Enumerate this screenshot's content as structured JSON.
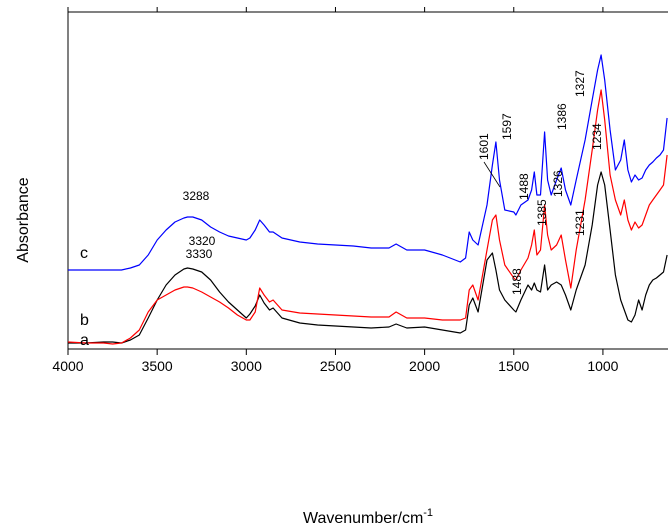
{
  "chart_data": {
    "type": "line",
    "x_label": {
      "text": "Wavenumber/cm",
      "superscript": "-1"
    },
    "y_label": "Absorbance",
    "x": [
      4000,
      3900,
      3800,
      3750,
      3700,
      3650,
      3600,
      3550,
      3500,
      3450,
      3400,
      3350,
      3330,
      3300,
      3250,
      3200,
      3150,
      3100,
      3050,
      3000,
      2980,
      2950,
      2925,
      2900,
      2870,
      2850,
      2800,
      2700,
      2600,
      2500,
      2400,
      2300,
      2200,
      2160,
      2100,
      2000,
      1900,
      1800,
      1770,
      1750,
      1730,
      1700,
      1650,
      1620,
      1600,
      1580,
      1550,
      1500,
      1488,
      1460,
      1420,
      1400,
      1385,
      1370,
      1350,
      1327,
      1310,
      1290,
      1260,
      1234,
      1210,
      1180,
      1150,
      1100,
      1060,
      1030,
      1010,
      990,
      960,
      930,
      900,
      880,
      860,
      840,
      820,
      800,
      780,
      760,
      740,
      720,
      700,
      680,
      660,
      640
    ],
    "series": [
      {
        "name": "a",
        "color": "#000000",
        "values": [
          6,
          6,
          7,
          7,
          6,
          9,
          14,
          31,
          49,
          64,
          74,
          80,
          81,
          80,
          77,
          69,
          57,
          47,
          39,
          31,
          35,
          43,
          54,
          46,
          39,
          41,
          31,
          26,
          24,
          23,
          22,
          21,
          22,
          25,
          21,
          22,
          19,
          16,
          19,
          44,
          51,
          37,
          89,
          96,
          79,
          59,
          49,
          39,
          37,
          49,
          64,
          59,
          66,
          59,
          57,
          84,
          59,
          64,
          67,
          64,
          54,
          39,
          59,
          84,
          124,
          164,
          177,
          164,
          119,
          74,
          49,
          39,
          29,
          27,
          34,
          49,
          39,
          54,
          64,
          69,
          71,
          74,
          77,
          94
        ]
      },
      {
        "name": "b",
        "color": "#ff0000",
        "values": [
          7,
          6,
          6,
          5,
          6,
          11,
          19,
          37,
          49,
          54,
          59,
          62,
          62,
          61,
          57,
          52,
          47,
          41,
          34,
          29,
          29,
          37,
          61,
          54,
          47,
          49,
          39,
          36,
          35,
          34,
          33,
          32,
          32,
          37,
          31,
          31,
          29,
          29,
          31,
          59,
          64,
          49,
          99,
          129,
          134,
          109,
          84,
          71,
          69,
          79,
          91,
          104,
          119,
          94,
          99,
          144,
          114,
          99,
          104,
          114,
          89,
          61,
          99,
          149,
          199,
          239,
          259,
          229,
          174,
          149,
          134,
          149,
          129,
          119,
          127,
          121,
          124,
          134,
          144,
          149,
          154,
          159,
          164,
          194
        ]
      },
      {
        "name": "c",
        "color": "#0000ff",
        "values": [
          79,
          79,
          79,
          79,
          79,
          81,
          84,
          94,
          109,
          119,
          127,
          131,
          132,
          132,
          129,
          122,
          117,
          113,
          111,
          109,
          111,
          119,
          129,
          124,
          117,
          117,
          111,
          107,
          105,
          104,
          103,
          101,
          101,
          105,
          99,
          99,
          94,
          87,
          91,
          117,
          109,
          104,
          144,
          184,
          207,
          169,
          139,
          137,
          134,
          144,
          149,
          159,
          177,
          154,
          154,
          217,
          169,
          154,
          169,
          181,
          159,
          144,
          169,
          209,
          249,
          279,
          294,
          269,
          219,
          179,
          189,
          209,
          179,
          167,
          174,
          169,
          171,
          179,
          184,
          187,
          191,
          194,
          199,
          231
        ]
      }
    ],
    "xlim": [
      4000,
      635
    ],
    "xticks": [
      4000,
      3500,
      3000,
      2500,
      2000,
      1500,
      1000
    ],
    "ylim": [
      0,
      337
    ],
    "annotations": [
      "3330",
      "3320",
      "3288",
      "1601",
      "1597",
      "1488",
      "1386",
      "1327",
      "1234",
      "1385",
      "1326",
      "1231",
      "1488"
    ]
  }
}
